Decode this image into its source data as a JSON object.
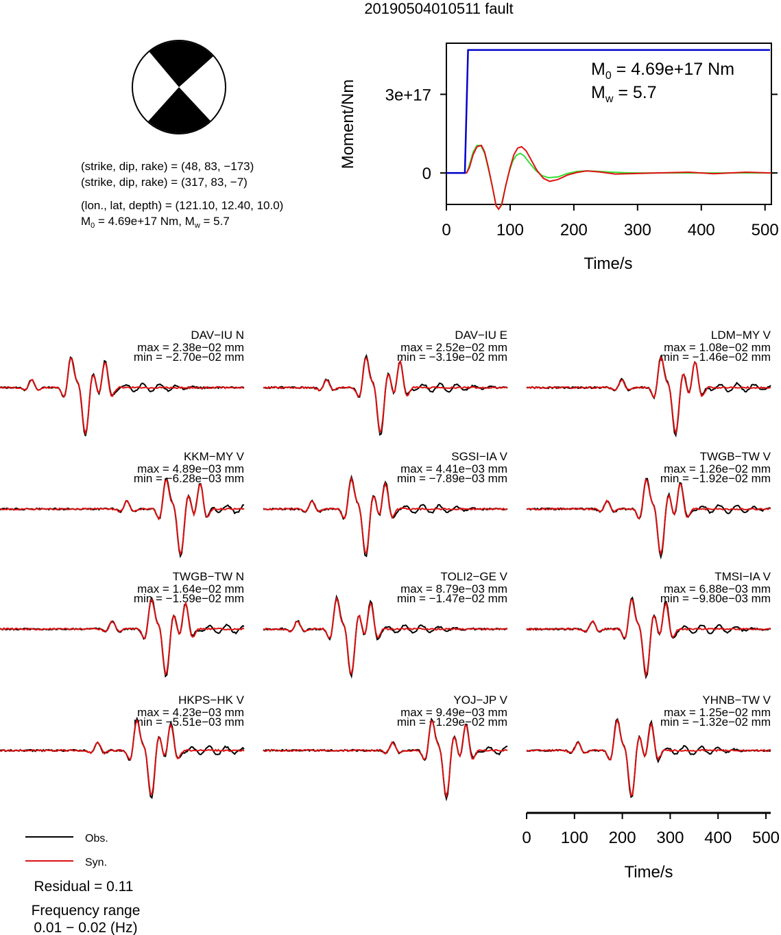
{
  "title": "20190504010511 fault",
  "colors": {
    "obs": "#000000",
    "syn": "#dd1111",
    "moment": "#0000cc",
    "stf_green": "#33dd33"
  },
  "mechanism": {
    "plane1": "(strike, dip, rake) = (48, 83, −173)",
    "plane2": "(strike, dip, rake) = (317, 83, −7)",
    "location": "(lon., lat, depth) = (121.10, 12.40, 10.0)",
    "m0_prefix": "M",
    "m0_sub": "0",
    "m0_rest": " = 4.69e+17 Nm, M",
    "mw_sub": "w",
    "mw_rest": " = 5.7"
  },
  "moment_box": {
    "m0_label": "M",
    "m0_sub": "0",
    "m0_value": " = 4.69e+17 Nm",
    "mw_label": "M",
    "mw_sub": "w",
    "mw_value": " = 5.7"
  },
  "chart_data": [
    {
      "type": "line",
      "name": "moment-rate",
      "xlabel": "Time/s",
      "ylabel": "Moment/Nm",
      "xlim": [
        0,
        510
      ],
      "ylim": [
        -1.2e+17,
        4.95e+17
      ],
      "xticks": [
        0,
        100,
        200,
        300,
        400,
        500
      ],
      "yticks": [
        {
          "value": 0,
          "label": "0"
        },
        {
          "value": 3e+17,
          "label": "3e+17"
        }
      ],
      "moment_step": {
        "t_start": 29,
        "t_end": 34,
        "value": 4.69e+17
      },
      "green_trace": [
        [
          0,
          0
        ],
        [
          28,
          0
        ],
        [
          32,
          1000000000000000.0
        ],
        [
          36,
          3e+16
        ],
        [
          42,
          8e+16
        ],
        [
          48,
          1.05e+17
        ],
        [
          54,
          1.05e+17
        ],
        [
          60,
          7.5e+16
        ],
        [
          66,
          1.5e+16
        ],
        [
          72,
          -5e+16
        ],
        [
          78,
          -1.25e+17
        ],
        [
          82,
          -1.38e+17
        ],
        [
          86,
          -1.25e+17
        ],
        [
          92,
          -6e+16
        ],
        [
          98,
          0
        ],
        [
          104,
          4.5e+16
        ],
        [
          110,
          6.8e+16
        ],
        [
          116,
          7.5e+16
        ],
        [
          122,
          6.5e+16
        ],
        [
          130,
          4e+16
        ],
        [
          140,
          1e+16
        ],
        [
          150,
          -1e+16
        ],
        [
          160,
          -1.8e+16
        ],
        [
          175,
          -1.5e+16
        ],
        [
          190,
          -2000000000000000.0
        ],
        [
          205,
          6000000000000000.0
        ],
        [
          220,
          8000000000000000.0
        ],
        [
          240,
          6000000000000000.0
        ],
        [
          260,
          3000000000000000.0
        ],
        [
          280,
          1000000000000000.0
        ],
        [
          300,
          0
        ],
        [
          400,
          0
        ],
        [
          510,
          0
        ]
      ],
      "red_trace": [
        [
          0,
          0
        ],
        [
          28,
          0
        ],
        [
          32,
          1000000000000000.0
        ],
        [
          36,
          2e+16
        ],
        [
          42,
          7e+16
        ],
        [
          48,
          1e+17
        ],
        [
          55,
          1.05e+17
        ],
        [
          60,
          8e+16
        ],
        [
          66,
          2e+16
        ],
        [
          72,
          -5e+16
        ],
        [
          78,
          -1.25e+17
        ],
        [
          82,
          -1.38e+17
        ],
        [
          87,
          -1.2e+17
        ],
        [
          93,
          -5e+16
        ],
        [
          100,
          2e+16
        ],
        [
          106,
          7e+16
        ],
        [
          112,
          9.5e+16
        ],
        [
          118,
          1e+17
        ],
        [
          125,
          8.5e+16
        ],
        [
          133,
          5e+16
        ],
        [
          142,
          1e+16
        ],
        [
          152,
          -2e+16
        ],
        [
          162,
          -3.2e+16
        ],
        [
          175,
          -2.5e+16
        ],
        [
          190,
          -8000000000000000.0
        ],
        [
          205,
          2000000000000000.0
        ],
        [
          220,
          8000000000000000.0
        ],
        [
          240,
          4000000000000000.0
        ],
        [
          265,
          -4000000000000000.0
        ],
        [
          300,
          -2000000000000000.0
        ],
        [
          330,
          0
        ],
        [
          380,
          3000000000000000.0
        ],
        [
          420,
          -3000000000000000.0
        ],
        [
          470,
          3000000000000000.0
        ],
        [
          510,
          0
        ]
      ]
    },
    {
      "type": "line",
      "name": "waveform-fits",
      "xlabel": "Time/s",
      "xlim": [
        0,
        510
      ],
      "xticks": [
        0,
        100,
        200,
        300,
        400,
        500
      ],
      "stations": [
        {
          "label": "DAV−IU N",
          "max": "max = 2.38e−02 mm",
          "min": "min = −2.70e−02 mm"
        },
        {
          "label": "DAV−IU E",
          "max": "max = 2.52e−02 mm",
          "min": "min = −3.19e−02 mm"
        },
        {
          "label": "LDM−MY V",
          "max": "max = 1.08e−02 mm",
          "min": "min = −1.46e−02 mm"
        },
        {
          "label": "KKM−MY V",
          "max": "max = 4.89e−03 mm",
          "min": "min = −6.28e−03 mm"
        },
        {
          "label": "SGSI−IA V",
          "max": "max = 4.41e−03 mm",
          "min": "min = −7.89e−03 mm"
        },
        {
          "label": "TWGB−TW V",
          "max": "max = 1.26e−02 mm",
          "min": "min = −1.92e−02 mm"
        },
        {
          "label": "TWGB−TW N",
          "max": "max = 1.64e−02 mm",
          "min": "min = −1.59e−02 mm"
        },
        {
          "label": "TOLI2−GE V",
          "max": "max = 8.79e−03 mm",
          "min": "min = −1.47e−02 mm"
        },
        {
          "label": "TMSI−IA V",
          "max": "max = 6.88e−03 mm",
          "min": "min = −9.80e−03 mm"
        },
        {
          "label": "HKPS−HK V",
          "max": "max = 4.23e−03 mm",
          "min": "min = −5.51e−03 mm"
        },
        {
          "label": "YOJ−JP V",
          "max": "max = 9.49e−03 mm",
          "min": "min = −1.29e−02 mm"
        },
        {
          "label": "YHNB−TW V",
          "max": "max = 1.25e−02 mm",
          "min": "min = −1.32e−02 mm"
        }
      ]
    }
  ],
  "legend": {
    "obs": "Obs.",
    "syn": "Syn.",
    "residual": "Residual = 0.11",
    "freq_title": "Frequency range",
    "freq_value": "0.01 − 0.02 (Hz)"
  }
}
